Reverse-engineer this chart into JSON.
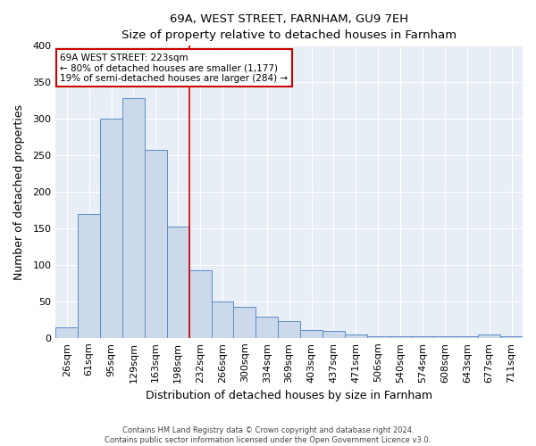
{
  "title": "69A, WEST STREET, FARNHAM, GU9 7EH",
  "subtitle": "Size of property relative to detached houses in Farnham",
  "xlabel": "Distribution of detached houses by size in Farnham",
  "ylabel": "Number of detached properties",
  "bar_labels": [
    "26sqm",
    "61sqm",
    "95sqm",
    "129sqm",
    "163sqm",
    "198sqm",
    "232sqm",
    "266sqm",
    "300sqm",
    "334sqm",
    "369sqm",
    "403sqm",
    "437sqm",
    "471sqm",
    "506sqm",
    "540sqm",
    "574sqm",
    "608sqm",
    "643sqm",
    "677sqm",
    "711sqm"
  ],
  "bar_heights": [
    15,
    170,
    300,
    328,
    258,
    153,
    93,
    50,
    43,
    29,
    23,
    11,
    10,
    5,
    2,
    2,
    2,
    2,
    2,
    5,
    2
  ],
  "bar_color": "#ccd9ea",
  "bar_edge_color": "#5b8dc8",
  "annotation_box_title": "69A WEST STREET: 223sqm",
  "annotation_line1": "← 80% of detached houses are smaller (1,177)",
  "annotation_line2": "19% of semi-detached houses are larger (284) →",
  "vline_x_index": 6,
  "vline_color": "#cc0000",
  "ylim": [
    0,
    400
  ],
  "fig_bg_color": "#ffffff",
  "plot_bg_color": "#e8eef5",
  "grid_color": "#ffffff",
  "footer1": "Contains HM Land Registry data © Crown copyright and database right 2024.",
  "footer2": "Contains public sector information licensed under the Open Government Licence v3.0."
}
